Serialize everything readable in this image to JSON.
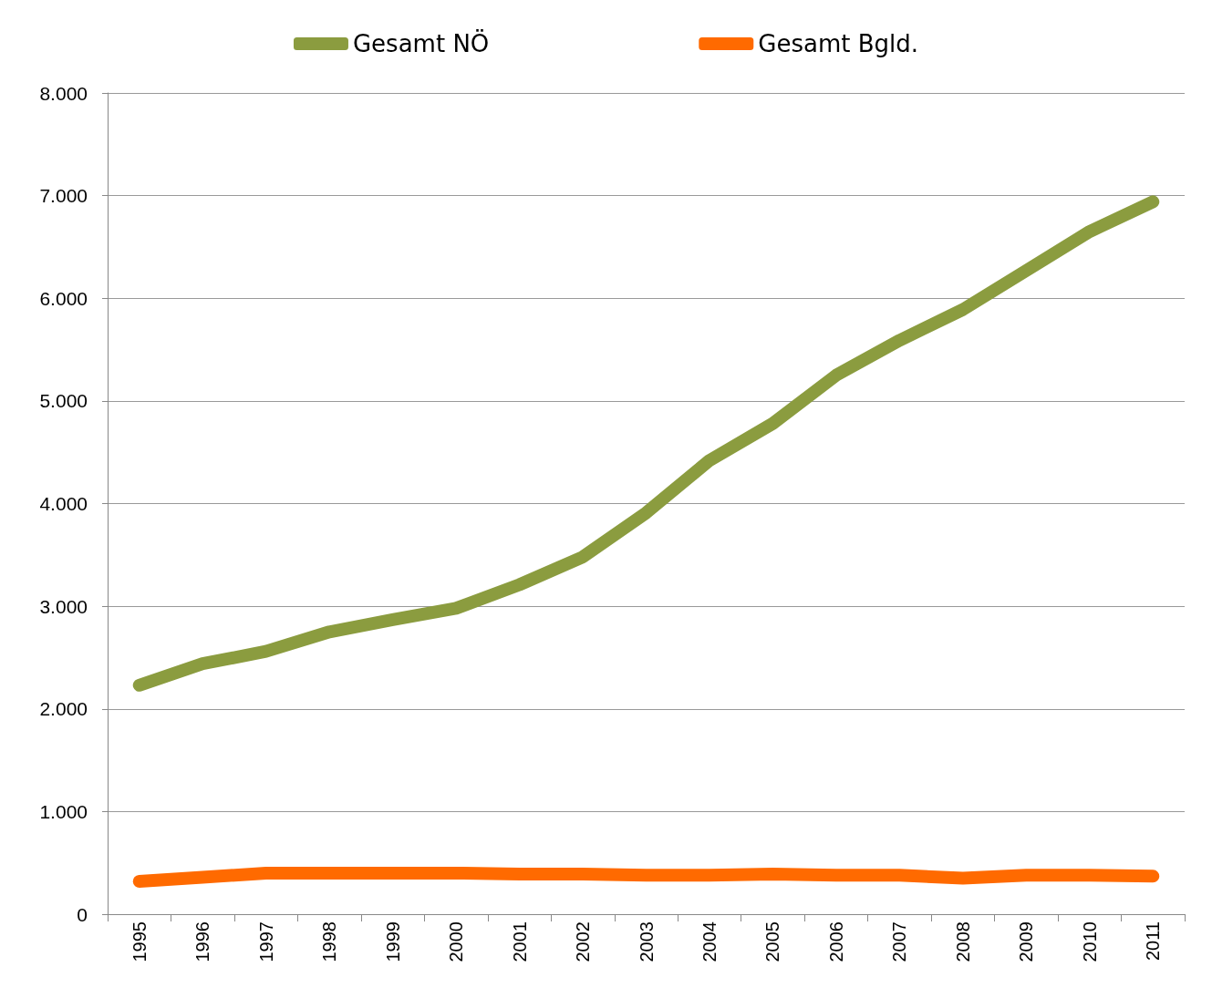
{
  "chart_data": {
    "type": "line",
    "categories": [
      "1995",
      "1996",
      "1997",
      "1998",
      "1999",
      "2000",
      "2001",
      "2002",
      "2003",
      "2004",
      "2005",
      "2006",
      "2007",
      "2008",
      "2009",
      "2010",
      "2011"
    ],
    "series": [
      {
        "name": "Gesamt NÖ",
        "color": "#8b9c3f",
        "values": [
          2230,
          2440,
          2560,
          2750,
          2870,
          2980,
          3210,
          3480,
          3910,
          4420,
          4780,
          5250,
          5590,
          5890,
          6270,
          6650,
          6940
        ]
      },
      {
        "name": "Gesamt Bgld.",
        "color": "#ff6a00",
        "values": [
          320,
          360,
          400,
          400,
          400,
          400,
          390,
          390,
          380,
          380,
          390,
          380,
          380,
          350,
          380,
          380,
          370
        ]
      }
    ],
    "ylim": [
      0,
      8000
    ],
    "yticks": [
      0,
      {
        "value": 1000,
        "label": "1.000"
      },
      {
        "value": 2000,
        "label": "2.000"
      },
      {
        "value": 3000,
        "label": "3.000"
      },
      {
        "value": 4000,
        "label": "4.000"
      },
      {
        "value": 5000,
        "label": "5.000"
      },
      {
        "value": 6000,
        "label": "6.000"
      },
      {
        "value": 7000,
        "label": "7.000"
      },
      {
        "value": 8000,
        "label": "8.000"
      }
    ],
    "grid": "y",
    "legend": "top",
    "line_style": "solid"
  }
}
